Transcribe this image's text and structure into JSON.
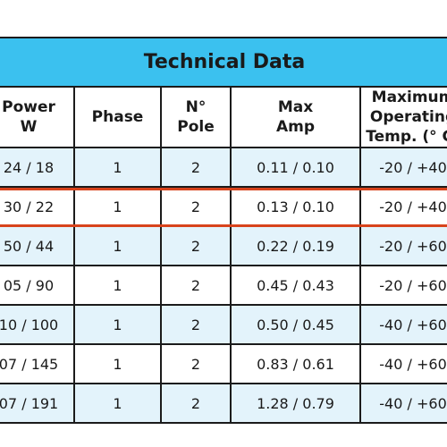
{
  "table": {
    "title": "Technical Data",
    "headers": {
      "power": [
        "Power",
        "W"
      ],
      "phase": [
        "Phase"
      ],
      "pole": [
        "N°",
        "Pole"
      ],
      "amp": [
        "Max",
        "Amp"
      ],
      "temp": [
        "Maximum",
        "Operating",
        "Temp. (° C)"
      ]
    },
    "rows": [
      {
        "power": "24 / 18",
        "phase": "1",
        "pole": "2",
        "amp": "0.11 / 0.10",
        "temp": "-20 / +40"
      },
      {
        "power": "30 / 22",
        "phase": "1",
        "pole": "2",
        "amp": "0.13 / 0.10",
        "temp": "-20 / +40"
      },
      {
        "power": "50 / 44",
        "phase": "1",
        "pole": "2",
        "amp": "0.22 / 0.19",
        "temp": "-20 / +60"
      },
      {
        "power": "05 / 90",
        "phase": "1",
        "pole": "2",
        "amp": "0.45 / 0.43",
        "temp": "-20 / +60"
      },
      {
        "power": "10 / 100",
        "phase": "1",
        "pole": "2",
        "amp": "0.50 / 0.45",
        "temp": "-40 / +60"
      },
      {
        "power": "07 / 145",
        "phase": "1",
        "pole": "2",
        "amp": "0.83 / 0.61",
        "temp": "-40 / +60"
      },
      {
        "power": "07 / 191",
        "phase": "1",
        "pole": "2",
        "amp": "1.28 / 0.79",
        "temp": "-40 / +60"
      }
    ],
    "highlighted_row": 1
  },
  "colors": {
    "title_bg": "#3bc1ef",
    "row_tint": "#e3f3fb",
    "highlight_border": "#d8431c",
    "grid": "#1b1b1b"
  }
}
